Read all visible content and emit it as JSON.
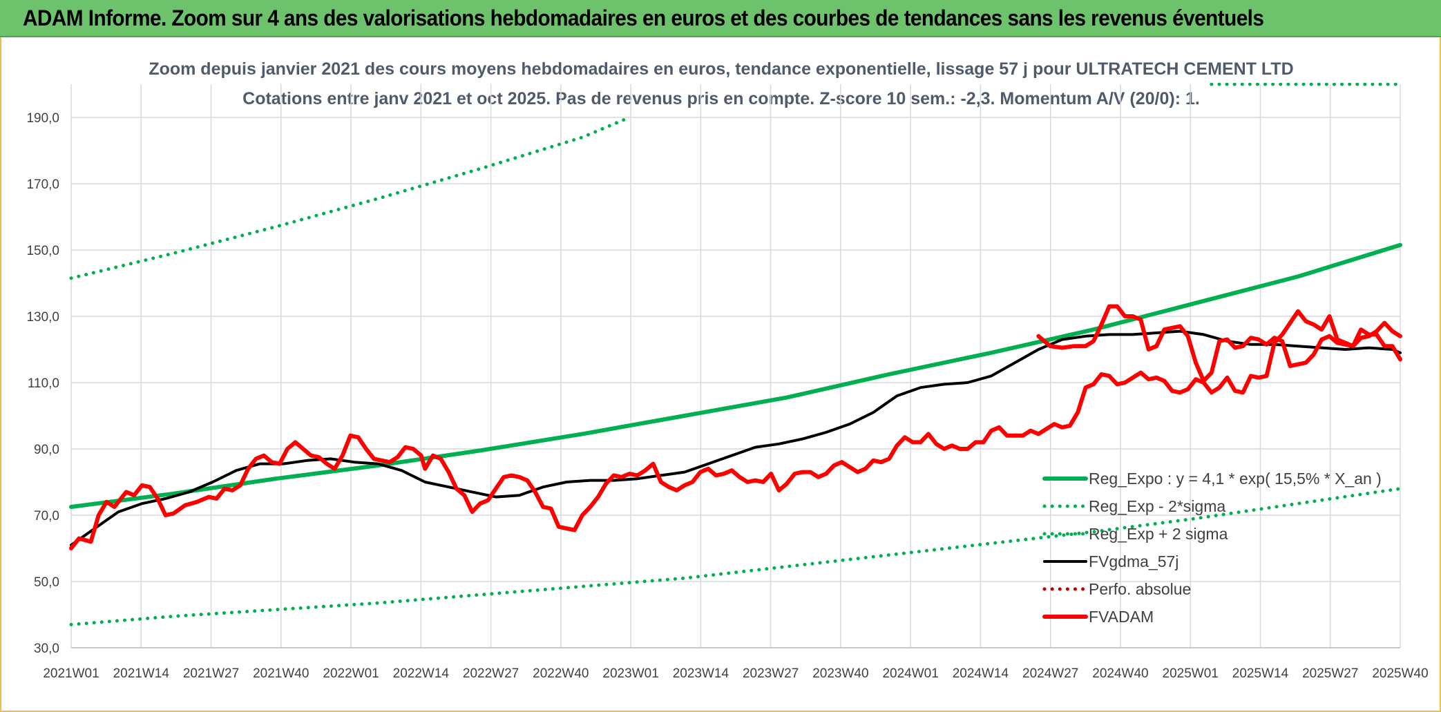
{
  "banner": {
    "title": "ADAM Informe. Zoom sur 4 ans des valorisations hebdomadaires en euros et des courbes de tendances sans les revenus éventuels"
  },
  "colors": {
    "banner": "#6cc36c",
    "reg_green": "#00b050",
    "fvadam_red": "#ff0000",
    "fvgdma_black": "#000000",
    "perfo_red": "#c00000",
    "grid": "#d9d9d9"
  },
  "chart_data": {
    "type": "line",
    "title": "Zoom depuis janvier 2021 des cours moyens hebdomadaires en euros, tendance exponentielle, lissage 57 j pour ULTRATECH CEMENT LTD",
    "subtitle": "Cotations entre janv 2021 et oct 2025. Pas de revenus pris en compte. Z-score 10 sem.: -2,3. Momentum A/V (20/0): 1.",
    "xlabel": "",
    "ylabel": "",
    "ylim": [
      30,
      200
    ],
    "x_ticks": [
      "2021W01",
      "2021W14",
      "2021W27",
      "2021W40",
      "2022W01",
      "2022W14",
      "2022W27",
      "2022W40",
      "2023W01",
      "2023W14",
      "2023W27",
      "2023W40",
      "2024W01",
      "2024W14",
      "2024W27",
      "2024W40",
      "2025W01",
      "2025W14",
      "2025W27",
      "2025W40"
    ],
    "y_ticks": [
      "30,0",
      "50,0",
      "70,0",
      "90,0",
      "110,0",
      "130,0",
      "150,0",
      "170,0",
      "190,0"
    ],
    "y_tick_values": [
      30,
      50,
      70,
      90,
      110,
      130,
      150,
      170,
      190
    ],
    "grid": true,
    "legend_position": "bottom-right",
    "week_range": [
      0,
      247
    ],
    "series": [
      {
        "name": "Reg_Expo : y = 4,1 * exp( 15,5% *  X_an )",
        "style": "solid-thick",
        "color": "#00b050",
        "points": [
          [
            0,
            72.5
          ],
          [
            26,
            76.5
          ],
          [
            52,
            81
          ],
          [
            78,
            85
          ],
          [
            104,
            89.5
          ],
          [
            130,
            94.5
          ],
          [
            156,
            100
          ],
          [
            182,
            105.5
          ],
          [
            208,
            112.5
          ],
          [
            234,
            119
          ],
          [
            260,
            126
          ],
          [
            286,
            134
          ],
          [
            312,
            142
          ],
          [
            338,
            151.5
          ]
        ]
      },
      {
        "name": "Reg_Exp - 2*sigma",
        "style": "dotted",
        "color": "#00b050",
        "points": [
          [
            0,
            37
          ],
          [
            26,
            39.5
          ],
          [
            52,
            41.5
          ],
          [
            78,
            43.5
          ],
          [
            104,
            46
          ],
          [
            130,
            48.5
          ],
          [
            156,
            51
          ],
          [
            182,
            54.5
          ],
          [
            208,
            58
          ],
          [
            234,
            61.5
          ],
          [
            260,
            65
          ],
          [
            286,
            69
          ],
          [
            312,
            73.5
          ],
          [
            338,
            78
          ]
        ]
      },
      {
        "name": "Reg_Exp + 2 sigma",
        "style": "dotted",
        "color": "#00b050",
        "points": [
          [
            0,
            141.5
          ],
          [
            26,
            149
          ],
          [
            52,
            157
          ],
          [
            78,
            165.5
          ],
          [
            104,
            174.5
          ],
          [
            130,
            184
          ],
          [
            142,
            190
          ]
        ],
        "extra_segment": [
          [
            290,
            200
          ],
          [
            338,
            200
          ]
        ]
      },
      {
        "name": "FVgdma_57j",
        "style": "solid",
        "color": "#000000",
        "points": [
          [
            0,
            61
          ],
          [
            6,
            66
          ],
          [
            12,
            71
          ],
          [
            18,
            73.5
          ],
          [
            24,
            75
          ],
          [
            30,
            77
          ],
          [
            36,
            80
          ],
          [
            42,
            83.5
          ],
          [
            48,
            85.5
          ],
          [
            54,
            85.5
          ],
          [
            60,
            86.5
          ],
          [
            66,
            87
          ],
          [
            72,
            86
          ],
          [
            78,
            85.5
          ],
          [
            84,
            83.5
          ],
          [
            90,
            80
          ],
          [
            96,
            78.5
          ],
          [
            102,
            77
          ],
          [
            108,
            75.5
          ],
          [
            114,
            76
          ],
          [
            120,
            78.5
          ],
          [
            126,
            80
          ],
          [
            132,
            80.5
          ],
          [
            138,
            80.5
          ],
          [
            144,
            81
          ],
          [
            150,
            82
          ],
          [
            156,
            83
          ],
          [
            162,
            85.5
          ],
          [
            168,
            88
          ],
          [
            174,
            90.5
          ],
          [
            180,
            91.5
          ],
          [
            186,
            93
          ],
          [
            192,
            95
          ],
          [
            198,
            97.5
          ],
          [
            204,
            101
          ],
          [
            210,
            106
          ],
          [
            216,
            108.5
          ],
          [
            222,
            109.5
          ],
          [
            228,
            110
          ],
          [
            234,
            112
          ],
          [
            240,
            116
          ],
          [
            246,
            120
          ],
          [
            252,
            123
          ],
          [
            258,
            124
          ],
          [
            264,
            124.5
          ],
          [
            270,
            124.5
          ],
          [
            276,
            125
          ],
          [
            282,
            125.5
          ],
          [
            288,
            124.5
          ],
          [
            294,
            122.5
          ],
          [
            300,
            121.5
          ],
          [
            306,
            121.5
          ],
          [
            312,
            121
          ],
          [
            318,
            120.5
          ],
          [
            324,
            120
          ],
          [
            330,
            120.5
          ],
          [
            336,
            120
          ],
          [
            338,
            119
          ]
        ]
      },
      {
        "name": "Perfo. absolue",
        "style": "dotted",
        "color": "#c00000",
        "points": []
      },
      {
        "name": "FVADAM",
        "style": "solid-thick",
        "color": "#ff0000",
        "points": [
          [
            0,
            60
          ],
          [
            2,
            63
          ],
          [
            5,
            62
          ],
          [
            7,
            70
          ],
          [
            9,
            74
          ],
          [
            11,
            72.5
          ],
          [
            14,
            77
          ],
          [
            16,
            76
          ],
          [
            18,
            79
          ],
          [
            20,
            78.5
          ],
          [
            22,
            75
          ],
          [
            24,
            70
          ],
          [
            26,
            70.5
          ],
          [
            29,
            73
          ],
          [
            32,
            74
          ],
          [
            35,
            75.5
          ],
          [
            37,
            75
          ],
          [
            39,
            78
          ],
          [
            41,
            77.5
          ],
          [
            43,
            79
          ],
          [
            45,
            84
          ],
          [
            47,
            87
          ],
          [
            49,
            88
          ],
          [
            51,
            86
          ],
          [
            53,
            85.5
          ],
          [
            55,
            90
          ],
          [
            57,
            92
          ],
          [
            59,
            90
          ],
          [
            61,
            88
          ],
          [
            63,
            87.5
          ],
          [
            65,
            85.5
          ],
          [
            67,
            84
          ],
          [
            69,
            88
          ],
          [
            71,
            94
          ],
          [
            73,
            93.5
          ],
          [
            75,
            90
          ],
          [
            77,
            87
          ],
          [
            79,
            86.5
          ],
          [
            81,
            86
          ],
          [
            83,
            87.5
          ],
          [
            85,
            90.5
          ],
          [
            87,
            90
          ],
          [
            89,
            88
          ],
          [
            90,
            84
          ],
          [
            92,
            88
          ],
          [
            94,
            87
          ],
          [
            96,
            83
          ],
          [
            98,
            78
          ],
          [
            100,
            76
          ],
          [
            102,
            71
          ],
          [
            104,
            73.5
          ],
          [
            106,
            74.5
          ],
          [
            108,
            78
          ],
          [
            110,
            81.5
          ],
          [
            112,
            82
          ],
          [
            114,
            81.5
          ],
          [
            116,
            80.5
          ],
          [
            118,
            77
          ],
          [
            120,
            72.5
          ],
          [
            122,
            72
          ],
          [
            124,
            66.5
          ],
          [
            126,
            66
          ],
          [
            128,
            65.5
          ],
          [
            130,
            70
          ],
          [
            132,
            72.5
          ],
          [
            134,
            75.5
          ],
          [
            136,
            79.5
          ],
          [
            138,
            82
          ],
          [
            140,
            81.5
          ],
          [
            142,
            82.5
          ],
          [
            144,
            82
          ],
          [
            146,
            83.5
          ],
          [
            148,
            85.5
          ],
          [
            150,
            80
          ],
          [
            152,
            78.5
          ],
          [
            154,
            77.5
          ],
          [
            156,
            79
          ],
          [
            158,
            80
          ],
          [
            160,
            83
          ],
          [
            162,
            84
          ],
          [
            164,
            82
          ],
          [
            166,
            82.5
          ],
          [
            168,
            83.5
          ],
          [
            170,
            81.5
          ],
          [
            172,
            80
          ],
          [
            174,
            80.5
          ],
          [
            176,
            80
          ],
          [
            178,
            82.5
          ],
          [
            180,
            77.5
          ],
          [
            182,
            79.5
          ],
          [
            184,
            82.5
          ],
          [
            186,
            83
          ],
          [
            188,
            83
          ],
          [
            190,
            81.5
          ],
          [
            192,
            82.5
          ],
          [
            194,
            85
          ],
          [
            196,
            86
          ],
          [
            198,
            84.5
          ],
          [
            200,
            83
          ],
          [
            202,
            84
          ],
          [
            204,
            86.5
          ],
          [
            206,
            86
          ],
          [
            208,
            87
          ],
          [
            210,
            91
          ],
          [
            212,
            93.5
          ],
          [
            214,
            92
          ],
          [
            216,
            92
          ],
          [
            218,
            94.5
          ],
          [
            220,
            91.5
          ],
          [
            222,
            90
          ],
          [
            224,
            91
          ],
          [
            226,
            90
          ],
          [
            228,
            90
          ],
          [
            230,
            92
          ],
          [
            232,
            92
          ],
          [
            234,
            95.5
          ],
          [
            236,
            96.5
          ],
          [
            238,
            94
          ],
          [
            240,
            94
          ],
          [
            242,
            94
          ],
          [
            244,
            95.5
          ],
          [
            246,
            94.5
          ],
          [
            248,
            96
          ],
          [
            250,
            97.5
          ],
          [
            252,
            96.5
          ],
          [
            254,
            97
          ],
          [
            256,
            101
          ],
          [
            258,
            108.5
          ],
          [
            260,
            109.5
          ],
          [
            262,
            112.5
          ],
          [
            264,
            112
          ],
          [
            266,
            109.5
          ],
          [
            268,
            110
          ],
          [
            270,
            111.5
          ],
          [
            272,
            113
          ],
          [
            274,
            111
          ],
          [
            276,
            111.5
          ],
          [
            278,
            110.5
          ],
          [
            280,
            107.5
          ],
          [
            282,
            107
          ],
          [
            284,
            108
          ],
          [
            286,
            111
          ],
          [
            288,
            110
          ],
          [
            290,
            107
          ],
          [
            292,
            108.5
          ],
          [
            294,
            111.5
          ],
          [
            296,
            107.5
          ],
          [
            298,
            107
          ],
          [
            300,
            112
          ],
          [
            302,
            111.5
          ],
          [
            304,
            112
          ],
          [
            306,
            122
          ],
          [
            308,
            124.5
          ],
          [
            310,
            128
          ],
          [
            312,
            131.5
          ],
          [
            314,
            128.5
          ],
          [
            316,
            127.5
          ],
          [
            318,
            126
          ],
          [
            320,
            130
          ],
          [
            322,
            123
          ],
          [
            324,
            122
          ],
          [
            326,
            121
          ],
          [
            328,
            123.5
          ],
          [
            330,
            124
          ],
          [
            332,
            125.5
          ],
          [
            334,
            128
          ],
          [
            336,
            125.5
          ],
          [
            338,
            124
          ]
        ]
      }
    ],
    "fvadam_tail": [
      [
        0,
        124
      ],
      [
        3,
        121
      ],
      [
        6,
        120.5
      ],
      [
        9,
        121
      ],
      [
        12,
        121
      ],
      [
        14,
        122.5
      ],
      [
        16,
        127.5
      ],
      [
        18,
        133
      ],
      [
        20,
        133
      ],
      [
        22,
        130
      ],
      [
        24,
        130
      ],
      [
        26,
        129
      ],
      [
        28,
        120
      ],
      [
        30,
        121
      ],
      [
        32,
        126
      ],
      [
        34,
        126.5
      ],
      [
        36,
        127
      ],
      [
        38,
        124
      ],
      [
        40,
        116
      ],
      [
        42,
        110.5
      ],
      [
        44,
        113
      ],
      [
        46,
        122.5
      ],
      [
        48,
        123
      ],
      [
        50,
        120.5
      ],
      [
        52,
        121
      ],
      [
        54,
        123.5
      ],
      [
        56,
        123
      ],
      [
        58,
        121.5
      ],
      [
        60,
        123.5
      ],
      [
        62,
        122.5
      ],
      [
        64,
        115
      ],
      [
        66,
        115.5
      ],
      [
        68,
        116
      ],
      [
        70,
        118.5
      ],
      [
        72,
        123
      ],
      [
        74,
        124
      ],
      [
        76,
        122
      ],
      [
        78,
        121.5
      ],
      [
        80,
        121
      ],
      [
        82,
        126
      ],
      [
        84,
        124.5
      ],
      [
        86,
        124.5
      ],
      [
        88,
        121
      ],
      [
        90,
        121
      ],
      [
        92,
        117
      ]
    ],
    "fvadam_tail_offset": 246
  }
}
